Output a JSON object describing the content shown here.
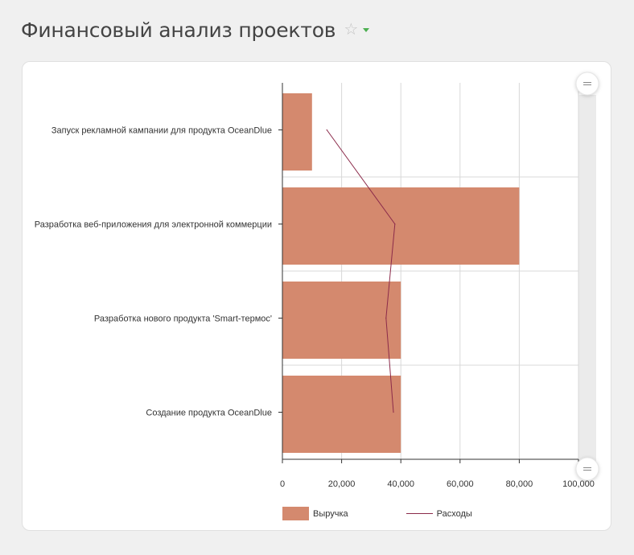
{
  "page": {
    "title": "Финансовый анализ проектов",
    "star_icon": "star-outline-icon",
    "caret_icon": "caret-down-icon"
  },
  "colors": {
    "bar": "#d4896e",
    "line": "#8b2a4a",
    "accent": "#4caf50",
    "grid": "#d8d8d8",
    "scroll_track": "#ebebeb"
  },
  "chart_data": {
    "type": "bar",
    "orientation": "horizontal",
    "categories": [
      "Запуск рекламной кампании для продукта OceanDlue",
      "Разработка веб-приложения для электронной коммерции",
      "Разработка нового продукта 'Smart-термос'",
      "Создание продукта OceanDlue"
    ],
    "series": [
      {
        "name": "Выручка",
        "type": "bar",
        "values": [
          10000,
          80000,
          40000,
          40000
        ]
      },
      {
        "name": "Расходы",
        "type": "line",
        "values": [
          15000,
          38000,
          35000,
          37500
        ]
      }
    ],
    "x_ticks": [
      "0",
      "20,000",
      "40,000",
      "60,000",
      "80,000",
      "100,000"
    ],
    "xlim": [
      0,
      100000
    ],
    "grid": true,
    "legend_position": "bottom"
  }
}
